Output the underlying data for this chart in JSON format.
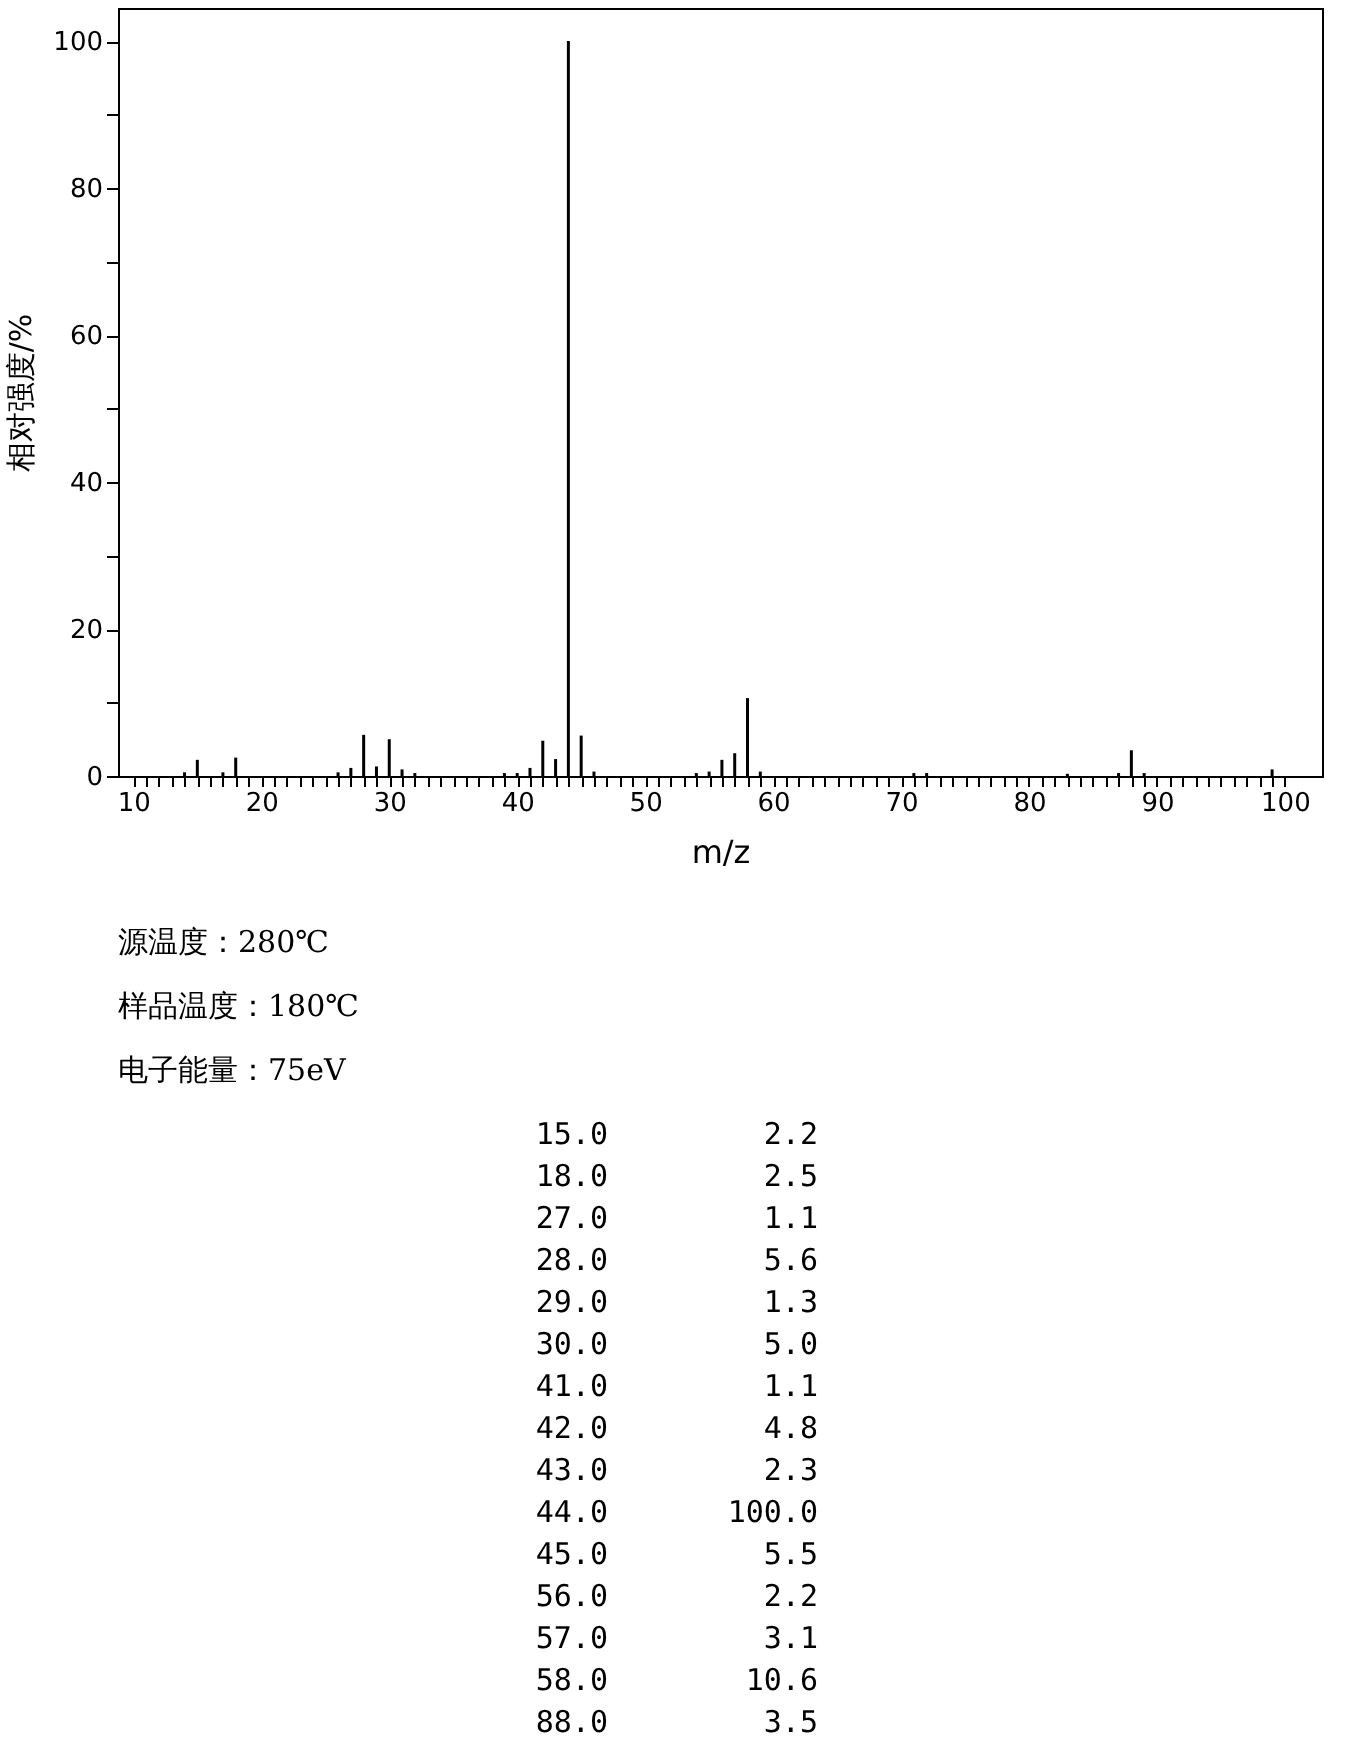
{
  "chart_data": {
    "type": "bar",
    "xlabel": "m/z",
    "ylabel": "相对强度/%",
    "x": [
      14,
      15,
      17,
      18,
      26,
      27,
      28,
      29,
      30,
      31,
      32,
      39,
      40,
      41,
      42,
      43,
      44,
      45,
      46,
      54,
      55,
      56,
      57,
      58,
      59,
      71,
      72,
      83,
      87,
      88,
      89,
      99
    ],
    "values": [
      0.5,
      2.2,
      0.5,
      2.5,
      0.5,
      1.1,
      5.6,
      1.3,
      5.0,
      0.9,
      0.4,
      0.4,
      0.4,
      1.1,
      4.8,
      2.3,
      100.0,
      5.5,
      0.6,
      0.4,
      0.6,
      2.2,
      3.1,
      10.6,
      0.6,
      0.4,
      0.4,
      0.3,
      0.4,
      3.5,
      0.4,
      0.9
    ],
    "color": "#000000",
    "xlim": [
      8.8,
      102.9
    ],
    "ylim": [
      0,
      104.5
    ],
    "xticks": [
      10,
      {
        "value": 11,
        "label": null
      },
      {
        "value": 12,
        "label": null
      },
      {
        "value": 13,
        "label": null
      },
      {
        "value": 14,
        "label": null
      },
      {
        "value": 15,
        "label": null
      },
      {
        "value": 16,
        "label": null
      },
      {
        "value": 17,
        "label": null
      },
      {
        "value": 18,
        "label": null
      },
      {
        "value": 19,
        "label": null
      },
      20,
      {
        "value": 21,
        "label": null
      },
      {
        "value": 22,
        "label": null
      },
      {
        "value": 23,
        "label": null
      },
      {
        "value": 24,
        "label": null
      },
      {
        "value": 25,
        "label": null
      },
      {
        "value": 26,
        "label": null
      },
      {
        "value": 27,
        "label": null
      },
      {
        "value": 28,
        "label": null
      },
      {
        "value": 29,
        "label": null
      },
      30,
      {
        "value": 31,
        "label": null
      },
      {
        "value": 32,
        "label": null
      },
      {
        "value": 33,
        "label": null
      },
      {
        "value": 34,
        "label": null
      },
      {
        "value": 35,
        "label": null
      },
      {
        "value": 36,
        "label": null
      },
      {
        "value": 37,
        "label": null
      },
      {
        "value": 38,
        "label": null
      },
      {
        "value": 39,
        "label": null
      },
      40,
      {
        "value": 41,
        "label": null
      },
      {
        "value": 42,
        "label": null
      },
      {
        "value": 43,
        "label": null
      },
      {
        "value": 44,
        "label": null
      },
      {
        "value": 45,
        "label": null
      },
      {
        "value": 46,
        "label": null
      },
      {
        "value": 47,
        "label": null
      },
      {
        "value": 48,
        "label": null
      },
      {
        "value": 49,
        "label": null
      },
      50,
      {
        "value": 51,
        "label": null
      },
      {
        "value": 52,
        "label": null
      },
      {
        "value": 53,
        "label": null
      },
      {
        "value": 54,
        "label": null
      },
      {
        "value": 55,
        "label": null
      },
      {
        "value": 56,
        "label": null
      },
      {
        "value": 57,
        "label": null
      },
      {
        "value": 58,
        "label": null
      },
      {
        "value": 59,
        "label": null
      },
      60,
      {
        "value": 61,
        "label": null
      },
      {
        "value": 62,
        "label": null
      },
      {
        "value": 63,
        "label": null
      },
      {
        "value": 64,
        "label": null
      },
      {
        "value": 65,
        "label": null
      },
      {
        "value": 66,
        "label": null
      },
      {
        "value": 67,
        "label": null
      },
      {
        "value": 68,
        "label": null
      },
      {
        "value": 69,
        "label": null
      },
      70,
      {
        "value": 71,
        "label": null
      },
      {
        "value": 72,
        "label": null
      },
      {
        "value": 73,
        "label": null
      },
      {
        "value": 74,
        "label": null
      },
      {
        "value": 75,
        "label": null
      },
      {
        "value": 76,
        "label": null
      },
      {
        "value": 77,
        "label": null
      },
      {
        "value": 78,
        "label": null
      },
      {
        "value": 79,
        "label": null
      },
      80,
      {
        "value": 81,
        "label": null
      },
      {
        "value": 82,
        "label": null
      },
      {
        "value": 83,
        "label": null
      },
      {
        "value": 84,
        "label": null
      },
      {
        "value": 85,
        "label": null
      },
      {
        "value": 86,
        "label": null
      },
      {
        "value": 87,
        "label": null
      },
      {
        "value": 88,
        "label": null
      },
      {
        "value": 89,
        "label": null
      },
      90,
      {
        "value": 91,
        "label": null
      },
      {
        "value": 92,
        "label": null
      },
      {
        "value": 93,
        "label": null
      },
      {
        "value": 94,
        "label": null
      },
      {
        "value": 95,
        "label": null
      },
      {
        "value": 96,
        "label": null
      },
      {
        "value": 97,
        "label": null
      },
      {
        "value": 98,
        "label": null
      },
      {
        "value": 99,
        "label": null
      },
      100
    ],
    "yticks": [
      0,
      {
        "value": 10,
        "label": null
      },
      20,
      {
        "value": 30,
        "label": null
      },
      40,
      {
        "value": 50,
        "label": null
      },
      60,
      {
        "value": 70,
        "label": null
      },
      80,
      {
        "value": 90,
        "label": null
      },
      100
    ],
    "grid": false,
    "annotations": [
      "源温度：280℃",
      "样品温度：180℃",
      "电子能量：75eV",
      "15.0",
      "2.2",
      "18.0",
      "2.5",
      "27.0",
      "1.1",
      "28.0",
      "5.6",
      "29.0",
      "1.3",
      "30.0",
      "5.0",
      "41.0",
      "1.1",
      "42.0",
      "4.8",
      "43.0",
      "2.3",
      "44.0",
      "100.0",
      "45.0",
      "5.5",
      "56.0",
      "2.2",
      "57.0",
      "3.1",
      "58.0",
      "10.6",
      "88.0",
      "3.5"
    ]
  }
}
